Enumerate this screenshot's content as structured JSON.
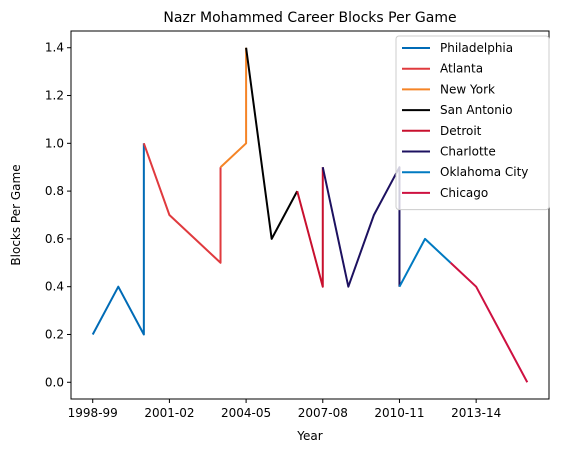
{
  "chart_data": {
    "type": "line",
    "title": "Nazr Mohammed Career Blocks Per Game",
    "xlabel": "Year",
    "ylabel": "Blocks Per Game",
    "x_tick_labels": [
      "1998-99",
      "2001-02",
      "2004-05",
      "2007-08",
      "2010-11",
      "2013-14"
    ],
    "y_ticks": [
      0.0,
      0.2,
      0.4,
      0.6,
      0.8,
      1.0,
      1.2,
      1.4
    ],
    "ylim": [
      -0.07,
      1.47
    ],
    "grid": false,
    "legend_position": "upper right",
    "series": [
      {
        "name": "Philadelphia",
        "color": "#006BB6",
        "points": [
          [
            "1998-99",
            0.2
          ],
          [
            "1999-00",
            0.4
          ],
          [
            "2000-01",
            0.2
          ],
          [
            "2000-01",
            1.0
          ]
        ]
      },
      {
        "name": "Atlanta",
        "color": "#E03A3E",
        "points": [
          [
            "2000-01",
            1.0
          ],
          [
            "2001-02",
            0.7
          ],
          [
            "2002-03",
            0.6
          ],
          [
            "2003-04",
            0.5
          ],
          [
            "2003-04",
            0.9
          ]
        ]
      },
      {
        "name": "New York",
        "color": "#F58426",
        "points": [
          [
            "2003-04",
            0.9
          ],
          [
            "2004-05",
            1.0
          ],
          [
            "2004-05",
            1.4
          ]
        ]
      },
      {
        "name": "San Antonio",
        "color": "#000000",
        "points": [
          [
            "2004-05",
            1.4
          ],
          [
            "2005-06",
            0.6
          ],
          [
            "2006-07",
            0.8
          ]
        ]
      },
      {
        "name": "Detroit",
        "color": "#C8102E",
        "points": [
          [
            "2006-07",
            0.8
          ],
          [
            "2007-08",
            0.4
          ],
          [
            "2007-08",
            0.9
          ]
        ]
      },
      {
        "name": "Charlotte",
        "color": "#1D1160",
        "points": [
          [
            "2007-08",
            0.9
          ],
          [
            "2008-09",
            0.4
          ],
          [
            "2009-10",
            0.7
          ],
          [
            "2010-11",
            0.9
          ],
          [
            "2010-11",
            0.4
          ]
        ]
      },
      {
        "name": "Oklahoma City",
        "color": "#007AC1",
        "points": [
          [
            "2010-11",
            0.4
          ],
          [
            "2011-12",
            0.6
          ],
          [
            "2012-13",
            0.5
          ]
        ]
      },
      {
        "name": "Chicago",
        "color": "#CE1141",
        "points": [
          [
            "2012-13",
            0.5
          ],
          [
            "2013-14",
            0.4
          ],
          [
            "2014-15",
            0.2
          ],
          [
            "2015-16",
            0.0
          ]
        ]
      }
    ]
  }
}
